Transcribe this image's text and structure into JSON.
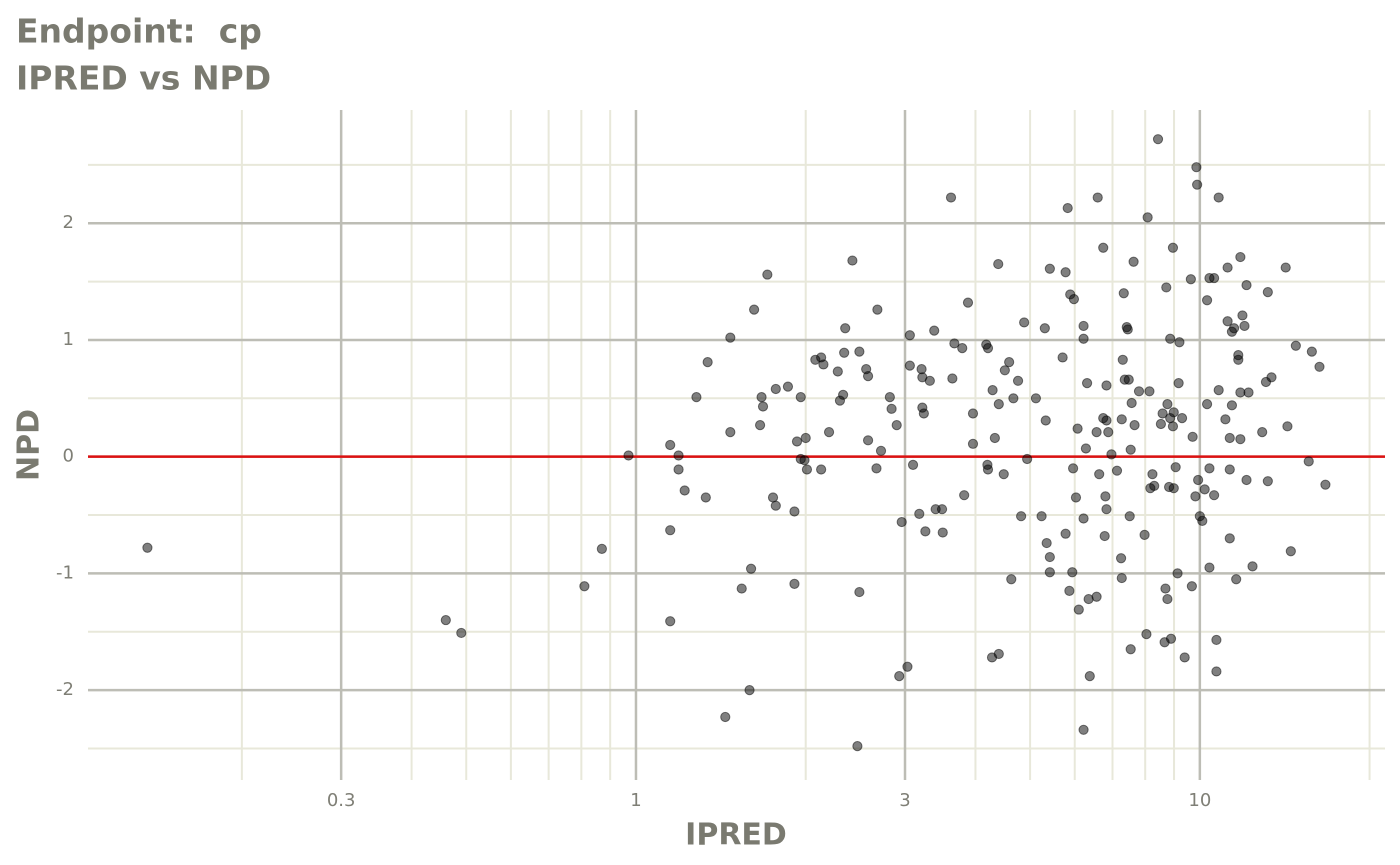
{
  "chart_data": {
    "type": "scatter",
    "title": "Endpoint:  cp",
    "subtitle": "IPRED vs NPD",
    "x_label": "IPRED",
    "y_label": "NPD",
    "x_log": true,
    "grid": true,
    "color": "#000000",
    "opacity": 0.5,
    "hline": 0,
    "hline_color": "#dd1111",
    "xlim": [
      0.1067,
      21.3
    ],
    "ylim": [
      -2.77,
      2.97
    ],
    "xticks": [
      0.3,
      1,
      3,
      10
    ],
    "xminor": [
      0.2,
      0.4,
      0.5,
      0.6,
      0.7,
      0.8,
      0.9,
      2,
      4,
      5,
      6,
      7,
      8,
      9,
      20
    ],
    "yticks": [
      -2,
      -1,
      0,
      1,
      2
    ],
    "yminor": [
      -2.5,
      -1.5,
      -0.5,
      0.5,
      1.5,
      2.5
    ],
    "x": [
      0.136,
      0.46,
      0.49,
      0.81,
      0.87,
      0.97,
      1.15,
      1.15,
      1.15,
      1.19,
      1.19,
      1.22,
      1.28,
      1.33,
      1.34,
      1.44,
      1.47,
      1.47,
      1.54,
      1.59,
      1.6,
      1.62,
      1.66,
      1.67,
      1.68,
      1.71,
      1.75,
      1.77,
      1.77,
      1.86,
      1.91,
      1.91,
      1.93,
      1.96,
      1.96,
      1.99,
      2.0,
      2.01,
      2.08,
      2.13,
      2.13,
      2.15,
      2.2,
      2.28,
      2.3,
      2.33,
      2.34,
      2.35,
      2.42,
      2.47,
      2.49,
      2.49,
      2.56,
      2.58,
      2.58,
      2.67,
      2.68,
      2.72,
      2.82,
      2.84,
      2.9,
      2.93,
      2.96,
      3.03,
      3.06,
      3.06,
      3.1,
      3.18,
      3.21,
      3.22,
      3.22,
      3.24,
      3.26,
      3.32,
      3.38,
      3.4,
      3.49,
      3.5,
      3.62,
      3.64,
      3.67,
      3.79,
      3.82,
      3.88,
      3.96,
      3.96,
      4.18,
      4.21,
      4.2,
      4.21,
      4.28,
      4.29,
      4.33,
      4.39,
      4.4,
      4.4,
      4.49,
      4.51,
      4.59,
      4.63,
      4.67,
      4.76,
      4.82,
      4.88,
      4.94,
      5.12,
      5.24,
      5.31,
      5.33,
      5.35,
      5.42,
      5.42,
      5.42,
      5.71,
      5.78,
      5.78,
      5.83,
      5.89,
      5.94,
      5.96,
      5.98,
      6.03,
      6.07,
      6.1,
      6.22,
      6.22,
      6.22,
      6.28,
      6.31,
      6.35,
      6.38,
      6.22,
      5.87,
      6.56,
      6.56,
      6.59,
      6.63,
      6.74,
      6.74,
      6.78,
      6.8,
      6.83,
      6.83,
      6.83,
      6.88,
      6.97,
      7.13,
      7.25,
      7.27,
      7.27,
      7.3,
      7.33,
      7.36,
      7.42,
      7.45,
      7.48,
      7.51,
      7.54,
      7.54,
      7.63,
      7.57,
      7.66,
      7.8,
      7.98,
      8.04,
      8.08,
      8.14,
      8.24,
      8.17,
      8.3,
      8.43,
      8.53,
      8.59,
      8.66,
      8.72,
      8.76,
      8.69,
      8.76,
      8.82,
      8.86,
      8.86,
      8.89,
      8.96,
      8.96,
      8.99,
      8.99,
      9.06,
      9.13,
      9.17,
      9.2,
      9.3,
      9.4,
      9.64,
      9.68,
      9.71,
      9.82,
      9.86,
      9.89,
      9.93,
      10.0,
      10.1,
      10.2,
      10.3,
      10.3,
      10.4,
      10.4,
      10.4,
      10.6,
      10.6,
      10.7,
      10.7,
      10.8,
      10.8,
      11.1,
      11.2,
      11.2,
      11.3,
      11.3,
      11.3,
      11.4,
      11.4,
      11.5,
      11.6,
      11.7,
      11.7,
      11.8,
      11.8,
      11.8,
      11.9,
      12.0,
      12.1,
      12.1,
      12.2,
      12.4,
      12.9,
      13.1,
      13.2,
      13.2,
      13.4,
      14.2,
      14.3,
      14.5,
      14.8,
      15.6,
      15.8,
      16.3,
      16.7
    ],
    "values": [
      -0.78,
      -1.4,
      -1.51,
      -1.11,
      -0.79,
      0.01,
      0.1,
      -0.63,
      -1.41,
      -0.11,
      0.01,
      -0.29,
      0.51,
      -0.35,
      0.81,
      -2.23,
      1.02,
      0.21,
      -1.13,
      -2.0,
      -0.96,
      1.26,
      0.27,
      0.51,
      0.43,
      1.56,
      -0.35,
      -0.42,
      0.58,
      0.6,
      -0.47,
      -1.09,
      0.13,
      0.51,
      -0.02,
      -0.03,
      0.16,
      -0.11,
      0.83,
      -0.11,
      0.85,
      0.79,
      0.21,
      0.73,
      0.48,
      0.53,
      0.89,
      1.1,
      1.68,
      -2.48,
      -1.16,
      0.9,
      0.75,
      0.69,
      0.14,
      -0.1,
      1.26,
      0.05,
      0.51,
      0.41,
      0.27,
      -1.88,
      -0.56,
      -1.8,
      1.04,
      0.78,
      -0.07,
      -0.49,
      0.75,
      0.68,
      0.42,
      0.37,
      -0.64,
      0.65,
      1.08,
      -0.45,
      -0.45,
      -0.65,
      2.22,
      0.67,
      0.97,
      0.93,
      -0.33,
      1.32,
      0.37,
      0.11,
      0.96,
      0.93,
      -0.07,
      -0.11,
      -1.72,
      0.57,
      0.16,
      1.65,
      0.45,
      -1.69,
      -0.15,
      0.74,
      0.81,
      -1.05,
      0.5,
      0.65,
      -0.51,
      1.15,
      -0.02,
      0.5,
      -0.51,
      1.1,
      0.31,
      -0.74,
      -0.86,
      -0.99,
      1.61,
      0.85,
      -0.66,
      1.58,
      2.13,
      1.39,
      -0.99,
      -0.1,
      1.35,
      -0.35,
      0.24,
      -1.31,
      1.12,
      1.01,
      -0.53,
      0.07,
      0.63,
      -1.22,
      -1.88,
      -2.34,
      -1.15,
      -1.2,
      0.21,
      2.22,
      -0.15,
      1.79,
      0.33,
      -0.68,
      -0.34,
      0.61,
      -0.45,
      0.31,
      0.21,
      0.02,
      -0.12,
      -0.87,
      -1.04,
      0.32,
      0.83,
      1.4,
      0.66,
      1.11,
      1.09,
      0.66,
      -0.51,
      0.06,
      -1.65,
      1.67,
      0.46,
      0.27,
      0.56,
      -0.67,
      -1.52,
      2.05,
      0.56,
      -0.15,
      -0.27,
      -0.25,
      2.72,
      0.28,
      0.37,
      -1.59,
      1.45,
      0.45,
      -1.13,
      -1.22,
      -0.26,
      0.33,
      1.01,
      -1.56,
      1.79,
      0.26,
      0.38,
      -0.27,
      -0.09,
      -1.0,
      0.63,
      0.98,
      0.33,
      -1.72,
      1.52,
      -1.11,
      0.17,
      -0.34,
      2.48,
      2.33,
      -0.2,
      -0.51,
      -0.55,
      -0.28,
      1.34,
      0.45,
      -0.1,
      -0.95,
      1.53,
      1.53,
      -0.33,
      -1.57,
      -1.84,
      0.57,
      2.22,
      0.32,
      1.62,
      1.16,
      0.16,
      -0.7,
      -0.11,
      1.07,
      0.44,
      1.1,
      -1.05,
      0.87,
      0.83,
      0.15,
      0.55,
      1.71,
      1.21,
      1.12,
      1.47,
      -0.2,
      0.55,
      -0.94,
      0.21,
      0.64,
      -0.21,
      1.41,
      0.68,
      1.62,
      0.26,
      -0.81,
      0.95,
      -0.04,
      0.9,
      0.77,
      -0.24
    ]
  }
}
